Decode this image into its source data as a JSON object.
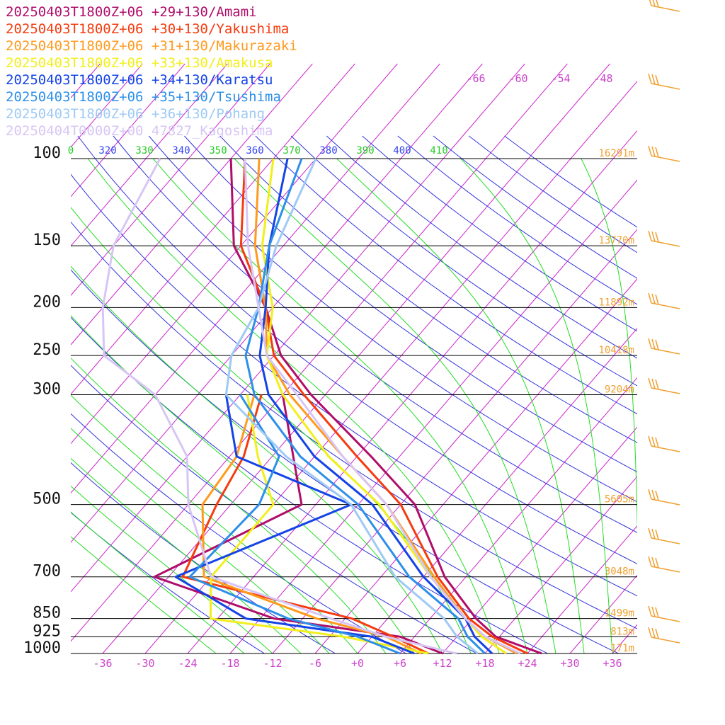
{
  "legend": [
    {
      "label": "20250403T1800Z+06 +29+130/Amami",
      "color": "#b00d6a"
    },
    {
      "label": "20250403T1800Z+06 +30+130/Yakushima",
      "color": "#f53b0f"
    },
    {
      "label": "20250403T1800Z+06 +31+130/Makurazaki",
      "color": "#ff9a1e"
    },
    {
      "label": "20250403T1800Z+06 +33+130/Amakusa",
      "color": "#f2ef1a"
    },
    {
      "label": "20250403T1800Z+06 +34+130/Karatsu",
      "color": "#1443e6"
    },
    {
      "label": "20250403T1800Z+06 +35+130/Tsushima",
      "color": "#2d8fe8"
    },
    {
      "label": "20250403T1800Z+06 +36+130/Pohang",
      "color": "#9ecaf5"
    },
    {
      "label": "20250404T0000Z+00 47827_Kagoshima",
      "color": "#d7c6f5"
    }
  ],
  "pressure_labels": [
    "100",
    "150",
    "200",
    "250",
    "300",
    "500",
    "700",
    "850",
    "925",
    "1000"
  ],
  "height_labels": [
    "16291m",
    "13770m",
    "11892m",
    "10418m",
    "9204m",
    "5605m",
    "3048m",
    "1499m",
    "813m",
    "171m"
  ],
  "x_tick_labels": [
    "-36",
    "-30",
    "-24",
    "-18",
    "-12",
    "-6",
    "+0",
    "+6",
    "+12",
    "+18",
    "+24",
    "+30",
    "+36"
  ],
  "theta_labels": [
    {
      "text": "0",
      "color": "#22cc22"
    },
    {
      "text": "320",
      "color": "#3344ee"
    },
    {
      "text": "330",
      "color": "#22cc22"
    },
    {
      "text": "340",
      "color": "#3344ee"
    },
    {
      "text": "350",
      "color": "#22cc22"
    },
    {
      "text": "360",
      "color": "#3344ee"
    },
    {
      "text": "370",
      "color": "#22cc22"
    },
    {
      "text": "380",
      "color": "#3344ee"
    },
    {
      "text": "390",
      "color": "#22cc22"
    },
    {
      "text": "400",
      "color": "#3344ee"
    },
    {
      "text": "410",
      "color": "#22cc22"
    }
  ],
  "upper_temp_labels": [
    "-66",
    "-60",
    "-54",
    "-48"
  ],
  "colors": {
    "isotherm": "#cc22cc",
    "dry_adiabat": "#3333dd",
    "moist_adiabat": "#22dd22",
    "isobar": "#000000",
    "height_text": "#f0a030",
    "wind_barb": "#f0a030",
    "tick_text": "#cc44cc"
  },
  "chart_data": {
    "type": "line",
    "chart_kind": "skew-T log-p sounding",
    "y_axis": {
      "quantity": "pressure",
      "unit": "hPa",
      "scale": "log",
      "range": [
        100,
        1000
      ],
      "ticks": [
        100,
        150,
        200,
        250,
        300,
        500,
        700,
        850,
        925,
        1000
      ]
    },
    "x_axis": {
      "quantity": "temperature",
      "unit": "°C",
      "ticks": [
        -36,
        -30,
        -24,
        -18,
        -12,
        -6,
        0,
        6,
        12,
        18,
        24,
        30,
        36
      ],
      "skewed": true
    },
    "standard_heights_m": {
      "100": 16291,
      "150": 13770,
      "200": 11892,
      "250": 10418,
      "300": 9204,
      "500": 5605,
      "700": 3048,
      "850": 1499,
      "925": 813,
      "1000": 171
    },
    "series": [
      {
        "name": "20250403T1800Z+06 +29+130/Amami",
        "temperature": [
          [
            1000,
            26
          ],
          [
            925,
            17.5
          ],
          [
            850,
            12.5
          ],
          [
            700,
            3
          ],
          [
            500,
            -10
          ],
          [
            400,
            -22
          ],
          [
            300,
            -38
          ],
          [
            250,
            -47
          ],
          [
            200,
            -55
          ],
          [
            150,
            -67
          ],
          [
            100,
            -78
          ]
        ],
        "dewpoint": [
          [
            1000,
            12
          ],
          [
            925,
            4
          ],
          [
            850,
            -16
          ],
          [
            700,
            -38
          ],
          [
            500,
            -26
          ],
          [
            400,
            -33
          ],
          [
            300,
            -42
          ]
        ]
      },
      {
        "name": "20250403T1800Z+06 +30+130/Yakushima",
        "temperature": [
          [
            1000,
            24
          ],
          [
            925,
            17
          ],
          [
            850,
            11.5
          ],
          [
            700,
            2
          ],
          [
            500,
            -12
          ],
          [
            400,
            -24
          ],
          [
            300,
            -39
          ],
          [
            250,
            -48
          ],
          [
            200,
            -55
          ],
          [
            150,
            -66
          ],
          [
            100,
            -76
          ]
        ],
        "dewpoint": [
          [
            1000,
            10
          ],
          [
            925,
            3
          ],
          [
            850,
            -5
          ],
          [
            700,
            -34
          ],
          [
            500,
            -38
          ],
          [
            400,
            -40
          ],
          [
            300,
            -45
          ]
        ]
      },
      {
        "name": "20250403T1800Z+06 +31+130/Makurazaki",
        "temperature": [
          [
            1000,
            22.5
          ],
          [
            925,
            16
          ],
          [
            850,
            11
          ],
          [
            700,
            1.5
          ],
          [
            500,
            -14
          ],
          [
            400,
            -26
          ],
          [
            300,
            -41
          ],
          [
            250,
            -49
          ],
          [
            200,
            -55
          ],
          [
            150,
            -64
          ],
          [
            100,
            -74
          ]
        ],
        "dewpoint": [
          [
            1000,
            9
          ],
          [
            925,
            2
          ],
          [
            850,
            -10
          ],
          [
            700,
            -31
          ],
          [
            500,
            -40
          ],
          [
            400,
            -41
          ],
          [
            300,
            -46
          ]
        ]
      },
      {
        "name": "20250403T1800Z+06 +33+130/Amakusa",
        "temperature": [
          [
            1000,
            21
          ],
          [
            925,
            15.5
          ],
          [
            850,
            11
          ],
          [
            700,
            1
          ],
          [
            500,
            -15
          ],
          [
            400,
            -28
          ],
          [
            300,
            -42
          ],
          [
            250,
            -49
          ],
          [
            200,
            -54
          ],
          [
            150,
            -63
          ],
          [
            100,
            -72
          ]
        ],
        "dewpoint": [
          [
            1000,
            10
          ],
          [
            925,
            -4
          ],
          [
            850,
            -25
          ],
          [
            700,
            -30
          ],
          [
            500,
            -30
          ],
          [
            400,
            -38
          ],
          [
            300,
            -47
          ]
        ]
      },
      {
        "name": "20250403T1800Z+06 +34+130/Karatsu",
        "temperature": [
          [
            1000,
            19
          ],
          [
            925,
            14.5
          ],
          [
            850,
            11
          ],
          [
            700,
            0
          ],
          [
            500,
            -16
          ],
          [
            400,
            -30
          ],
          [
            300,
            -44
          ],
          [
            250,
            -50
          ],
          [
            200,
            -55
          ],
          [
            150,
            -62
          ],
          [
            100,
            -70
          ]
        ],
        "dewpoint": [
          [
            1000,
            8
          ],
          [
            925,
            0
          ],
          [
            850,
            -20
          ],
          [
            700,
            -35
          ],
          [
            500,
            -19
          ],
          [
            400,
            -41
          ],
          [
            300,
            -50
          ]
        ]
      },
      {
        "name": "20250403T1800Z+06 +35+130/Tsushima",
        "temperature": [
          [
            1000,
            18
          ],
          [
            925,
            13.5
          ],
          [
            850,
            10
          ],
          [
            700,
            -2
          ],
          [
            500,
            -18
          ],
          [
            400,
            -32
          ],
          [
            300,
            -46
          ],
          [
            250,
            -52
          ],
          [
            200,
            -56
          ],
          [
            150,
            -62
          ],
          [
            100,
            -68
          ]
        ],
        "dewpoint": [
          [
            1000,
            6
          ],
          [
            925,
            -2
          ],
          [
            850,
            -14
          ],
          [
            700,
            -33
          ],
          [
            500,
            -32
          ],
          [
            400,
            -35
          ],
          [
            300,
            -48
          ]
        ]
      },
      {
        "name": "20250403T1800Z+06 +36+130/Pohang",
        "temperature": [
          [
            1000,
            17
          ],
          [
            925,
            12
          ],
          [
            850,
            8
          ],
          [
            700,
            -4
          ],
          [
            500,
            -19
          ],
          [
            400,
            -34
          ],
          [
            300,
            -50
          ],
          [
            250,
            -54
          ],
          [
            200,
            -56
          ],
          [
            150,
            -61
          ],
          [
            100,
            -66
          ]
        ],
        "dewpoint": []
      },
      {
        "name": "20250404T0000Z+00 47827_Kagoshima",
        "temperature": [
          [
            1000,
            23
          ],
          [
            925,
            16
          ],
          [
            850,
            11
          ],
          [
            700,
            1
          ],
          [
            500,
            -14
          ],
          [
            400,
            -26
          ],
          [
            300,
            -40
          ],
          [
            250,
            -49
          ],
          [
            200,
            -56
          ],
          [
            150,
            -65
          ],
          [
            100,
            -76
          ]
        ],
        "dewpoint": [
          [
            1000,
            14
          ],
          [
            925,
            2
          ],
          [
            850,
            -8
          ],
          [
            700,
            -30
          ],
          [
            500,
            -42
          ],
          [
            400,
            -48
          ],
          [
            300,
            -60
          ],
          [
            250,
            -72
          ],
          [
            200,
            -78
          ],
          [
            150,
            -84
          ],
          [
            100,
            -88
          ]
        ]
      }
    ],
    "wind_barbs_column": "right"
  }
}
